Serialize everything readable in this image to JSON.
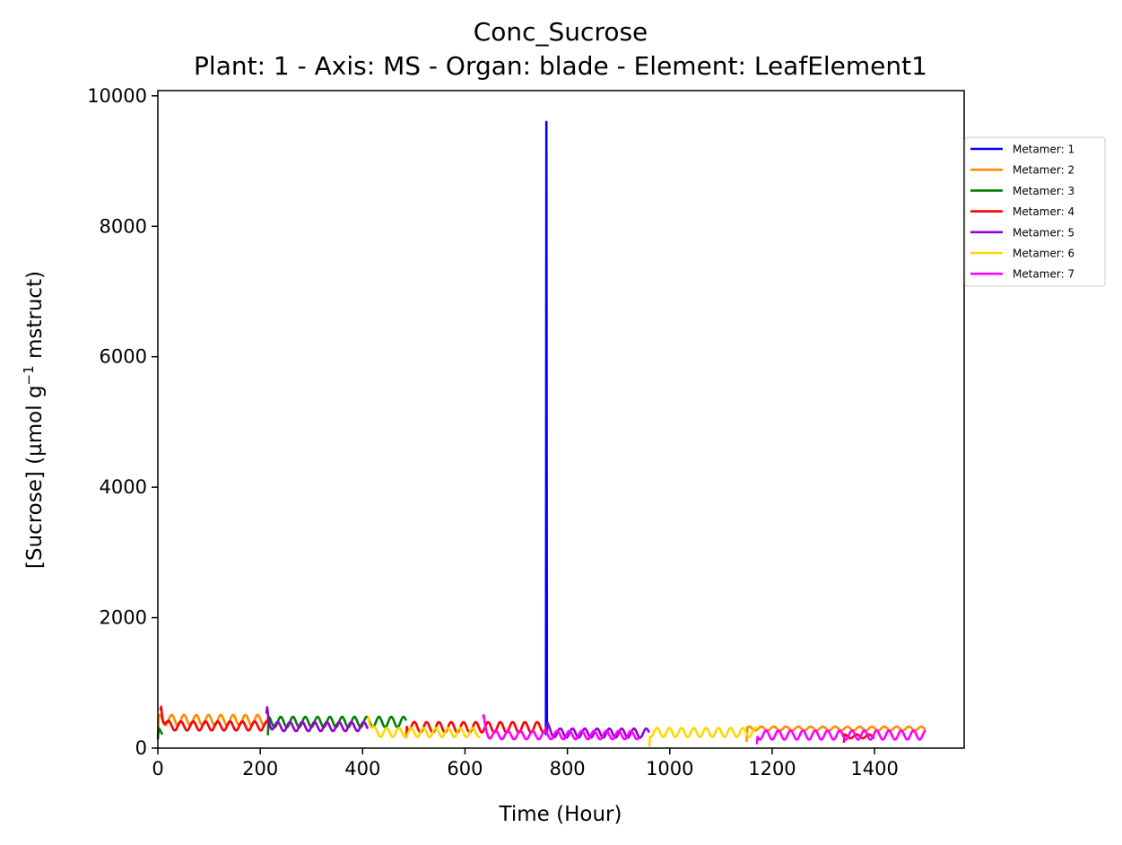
{
  "chart_data": {
    "type": "line",
    "title": "Conc_Sucrose",
    "subtitle": "Plant: 1 - Axis: MS - Organ: blade - Element: LeafElement1",
    "xlabel": "Time (Hour)",
    "ylabel_prefix": "[Sucrose] (µmol g",
    "ylabel_sup": "−1",
    "ylabel_suffix": " mstruct)",
    "xlim": [
      0,
      1575
    ],
    "ylim": [
      0,
      10080
    ],
    "xticks": [
      0,
      200,
      400,
      600,
      800,
      1000,
      1200,
      1400
    ],
    "yticks": [
      0,
      2000,
      4000,
      6000,
      8000,
      10000
    ],
    "grid": false,
    "legend_position": "outside-top-right",
    "series": [
      {
        "name": "Metamer: 1",
        "color": "#0000ff",
        "segments": [
          {
            "start": 758,
            "end": 760,
            "peak": 9600,
            "base": 200,
            "amp": 0
          }
        ]
      },
      {
        "name": "Metamer: 2",
        "color": "#ff8c00",
        "segments": [
          {
            "start": 0,
            "end": 215,
            "peak": 420,
            "base": 430,
            "amp": 80
          },
          {
            "start": 1150,
            "end": 1500,
            "peak": 300,
            "base": 300,
            "amp": 30
          }
        ]
      },
      {
        "name": "Metamer: 3",
        "color": "#008000",
        "segments": [
          {
            "start": 0,
            "end": 10,
            "peak": 250,
            "base": 250,
            "amp": 60
          },
          {
            "start": 215,
            "end": 485,
            "peak": 480,
            "base": 400,
            "amp": 80
          }
        ]
      },
      {
        "name": "Metamer: 4",
        "color": "#ff0000",
        "segments": [
          {
            "start": 5,
            "end": 215,
            "peak": 850,
            "base": 340,
            "amp": 70
          },
          {
            "start": 485,
            "end": 760,
            "peak": 420,
            "base": 320,
            "amp": 80
          },
          {
            "start": 1340,
            "end": 1400,
            "peak": 200,
            "base": 180,
            "amp": 30
          }
        ]
      },
      {
        "name": "Metamer: 5",
        "color": "#9400d3",
        "segments": [
          {
            "start": 212,
            "end": 410,
            "peak": 700,
            "base": 330,
            "amp": 70
          },
          {
            "start": 760,
            "end": 960,
            "peak": 360,
            "base": 230,
            "amp": 70
          }
        ]
      },
      {
        "name": "Metamer: 6",
        "color": "#ffd700",
        "segments": [
          {
            "start": 410,
            "end": 630,
            "peak": 680,
            "base": 240,
            "amp": 70
          },
          {
            "start": 960,
            "end": 1170,
            "peak": 300,
            "base": 240,
            "amp": 70
          }
        ]
      },
      {
        "name": "Metamer: 7",
        "color": "#ff00ff",
        "segments": [
          {
            "start": 635,
            "end": 940,
            "peak": 550,
            "base": 200,
            "amp": 65
          },
          {
            "start": 1170,
            "end": 1500,
            "peak": 260,
            "base": 200,
            "amp": 70
          }
        ]
      }
    ]
  }
}
